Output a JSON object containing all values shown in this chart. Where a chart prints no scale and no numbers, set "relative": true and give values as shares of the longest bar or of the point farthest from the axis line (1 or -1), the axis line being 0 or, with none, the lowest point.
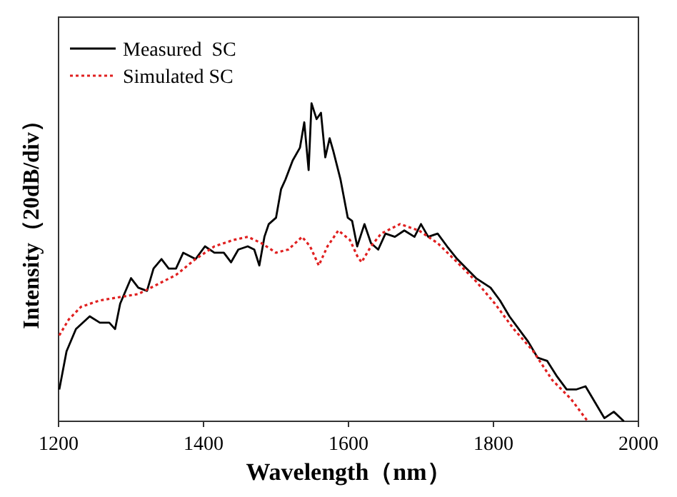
{
  "chart_data": {
    "type": "line",
    "xlabel": "Wavelength（nm）",
    "ylabel": "Intensity（20dB/div）",
    "relative": true,
    "xlim": [
      1200,
      2000
    ],
    "xticks": [
      1200,
      1400,
      1600,
      1800,
      2000
    ],
    "legend": "top left",
    "series": [
      {
        "name": "Measured  SC",
        "color": "#000000",
        "line_style": "solid",
        "x": [
          1201,
          1211,
          1224,
          1243,
          1257,
          1270,
          1278,
          1285,
          1300,
          1310,
          1322,
          1331,
          1342,
          1352,
          1362,
          1372,
          1389,
          1402,
          1415,
          1428,
          1438,
          1448,
          1461,
          1470,
          1477,
          1484,
          1490,
          1500,
          1507,
          1513,
          1523,
          1533,
          1539,
          1545,
          1549,
          1556,
          1562,
          1568,
          1574,
          1579,
          1589,
          1599,
          1605,
          1612,
          1622,
          1631,
          1641,
          1651,
          1664,
          1677,
          1691,
          1700,
          1710,
          1723,
          1736,
          1750,
          1763,
          1776,
          1796,
          1809,
          1822,
          1835,
          1848,
          1861,
          1874,
          1888,
          1901,
          1914,
          1927,
          1940,
          1953,
          1966,
          1980
        ],
        "values": [
          0.1,
          0.22,
          0.29,
          0.33,
          0.31,
          0.31,
          0.29,
          0.37,
          0.45,
          0.42,
          0.41,
          0.48,
          0.51,
          0.48,
          0.48,
          0.53,
          0.51,
          0.55,
          0.53,
          0.53,
          0.5,
          0.54,
          0.55,
          0.54,
          0.49,
          0.58,
          0.62,
          0.64,
          0.73,
          0.76,
          0.82,
          0.86,
          0.94,
          0.79,
          1.0,
          0.95,
          0.97,
          0.83,
          0.89,
          0.85,
          0.76,
          0.64,
          0.63,
          0.55,
          0.62,
          0.56,
          0.54,
          0.59,
          0.58,
          0.6,
          0.58,
          0.62,
          0.58,
          0.59,
          0.55,
          0.51,
          0.48,
          0.45,
          0.42,
          0.38,
          0.33,
          0.29,
          0.25,
          0.2,
          0.19,
          0.14,
          0.1,
          0.1,
          0.11,
          0.06,
          0.01,
          0.03,
          0.0
        ]
      },
      {
        "name": "Simulated SC",
        "color": "#e02020",
        "line_style": "dotted",
        "x": [
          1201,
          1214,
          1231,
          1257,
          1283,
          1310,
          1336,
          1362,
          1389,
          1415,
          1441,
          1461,
          1480,
          1500,
          1517,
          1536,
          1547,
          1559,
          1571,
          1586,
          1602,
          1612,
          1618,
          1631,
          1645,
          1671,
          1697,
          1723,
          1750,
          1776,
          1802,
          1828,
          1855,
          1881,
          1907,
          1930
        ],
        "values": [
          0.27,
          0.32,
          0.36,
          0.38,
          0.39,
          0.4,
          0.43,
          0.46,
          0.51,
          0.55,
          0.57,
          0.58,
          0.56,
          0.53,
          0.54,
          0.58,
          0.55,
          0.49,
          0.55,
          0.6,
          0.57,
          0.52,
          0.5,
          0.55,
          0.59,
          0.62,
          0.6,
          0.56,
          0.5,
          0.44,
          0.37,
          0.29,
          0.22,
          0.13,
          0.07,
          0.0
        ]
      }
    ]
  }
}
